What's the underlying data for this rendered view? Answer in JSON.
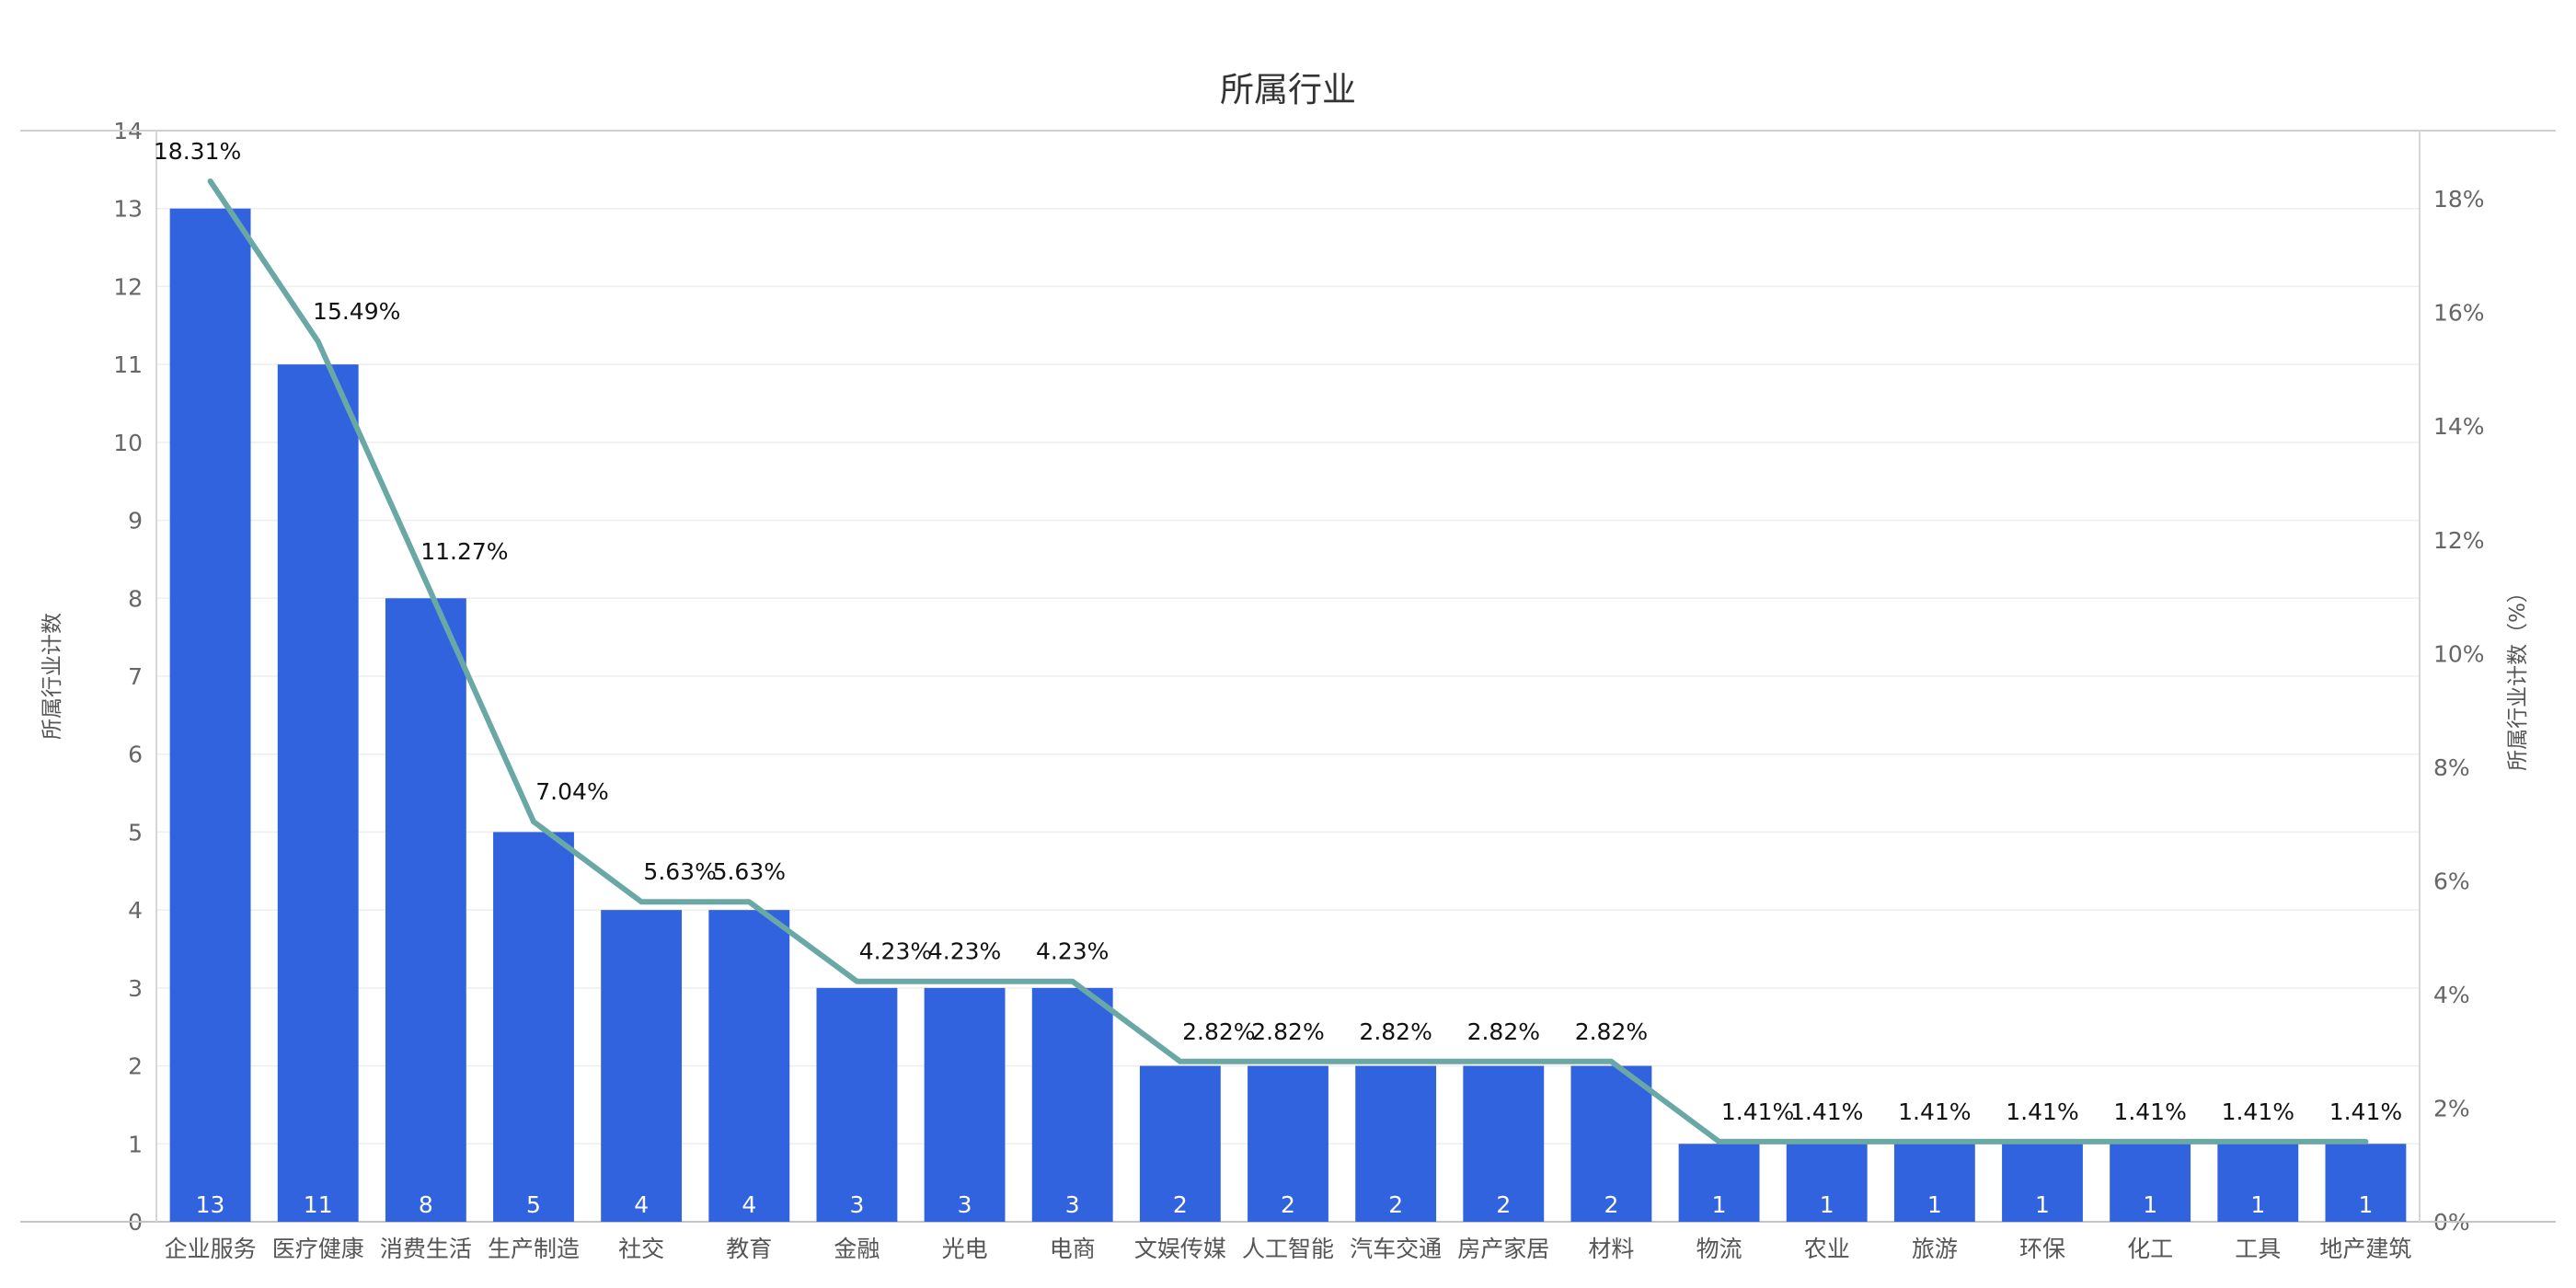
{
  "chart_data": {
    "type": "bar",
    "title": "所属行业",
    "ylabel": "所属行业计数",
    "y2label": "所属行业计数（%）",
    "ylim": [
      0,
      14
    ],
    "y2lim": [
      0,
      19.2
    ],
    "yticks": [
      0,
      1,
      2,
      3,
      4,
      5,
      6,
      7,
      8,
      9,
      10,
      11,
      12,
      13,
      14
    ],
    "y2ticks": [
      "0%",
      "2%",
      "4%",
      "6%",
      "8%",
      "10%",
      "12%",
      "14%",
      "16%",
      "18%"
    ],
    "grid": true,
    "categories": [
      "企业服务",
      "医疗健康",
      "消费生活",
      "生产制造",
      "社交",
      "教育",
      "金融",
      "光电",
      "电商",
      "文娱传媒",
      "人工智能",
      "汽车交通",
      "房产家居",
      "材料",
      "物流",
      "农业",
      "旅游",
      "环保",
      "化工",
      "工具",
      "地产建筑"
    ],
    "series": [
      {
        "type": "bar",
        "axis": "left",
        "values": [
          13,
          11,
          8,
          5,
          4,
          4,
          3,
          3,
          3,
          2,
          2,
          2,
          2,
          2,
          1,
          1,
          1,
          1,
          1,
          1,
          1
        ],
        "labels": [
          "13",
          "11",
          "8",
          "5",
          "4",
          "4",
          "3",
          "3",
          "3",
          "2",
          "2",
          "2",
          "2",
          "2",
          "1",
          "1",
          "1",
          "1",
          "1",
          "1",
          "1"
        ],
        "color": "#3063DD"
      },
      {
        "type": "line",
        "axis": "right",
        "values": [
          18.31,
          15.49,
          11.27,
          7.04,
          5.63,
          5.63,
          4.23,
          4.23,
          4.23,
          2.82,
          2.82,
          2.82,
          2.82,
          2.82,
          1.41,
          1.41,
          1.41,
          1.41,
          1.41,
          1.41,
          1.41
        ],
        "labels": [
          "18.31%",
          "15.49%",
          "11.27%",
          "7.04%",
          "5.63%",
          "5.63%",
          "4.23%",
          "4.23%",
          "4.23%",
          "2.82%",
          "2.82%",
          "2.82%",
          "2.82%",
          "2.82%",
          "1.41%",
          "1.41%",
          "1.41%",
          "1.41%",
          "1.41%",
          "1.41%",
          "1.41%"
        ],
        "color": "#6AA8A6"
      }
    ]
  }
}
